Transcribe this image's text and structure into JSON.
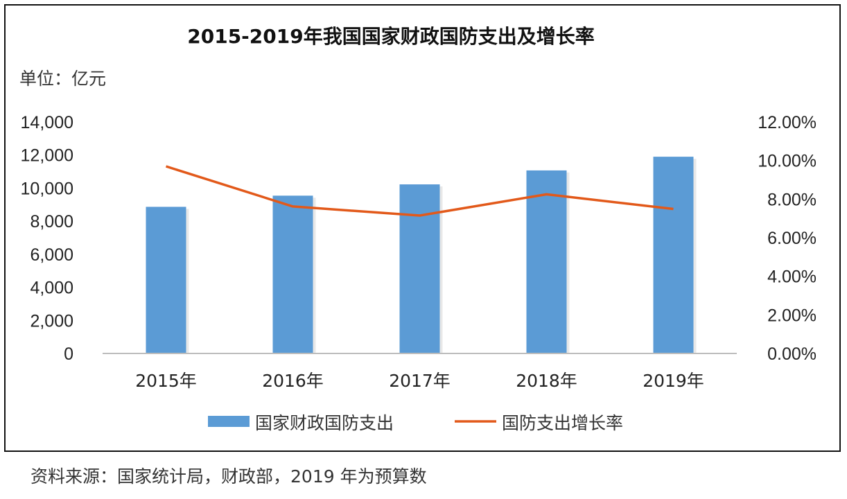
{
  "chart_data": {
    "type": "bar",
    "title": "2015-2019年我国国家财政国防支出及增长率",
    "unit_label": "单位：亿元",
    "categories": [
      "2015年",
      "2016年",
      "2017年",
      "2018年",
      "2019年"
    ],
    "series": [
      {
        "name": "国家财政国防支出",
        "type": "bar",
        "axis": "left",
        "color": "#5b9bd5",
        "values": [
          8868,
          9544,
          10226,
          11070,
          11899
        ]
      },
      {
        "name": "国防支出增长率",
        "type": "line",
        "axis": "right",
        "color": "#e2591a",
        "values": [
          0.097,
          0.0762,
          0.0715,
          0.0825,
          0.0749
        ]
      }
    ],
    "y_left": {
      "min": 0,
      "max": 14000,
      "tick_values": [
        0,
        2000,
        4000,
        6000,
        8000,
        10000,
        12000,
        14000
      ],
      "tick_labels": [
        "0",
        "2,000",
        "4,000",
        "6,000",
        "8,000",
        "10,000",
        "12,000",
        "14,000"
      ]
    },
    "y_right": {
      "min": 0,
      "max": 0.12,
      "tick_values": [
        0,
        0.02,
        0.04,
        0.06,
        0.08,
        0.1,
        0.12
      ],
      "tick_labels": [
        "0.00%",
        "2.00%",
        "4.00%",
        "6.00%",
        "8.00%",
        "10.00%",
        "12.00%"
      ]
    },
    "grid": false,
    "legend_position": "bottom"
  },
  "source_note": "资料来源：国家统计局，财政部，2019 年为预算数"
}
